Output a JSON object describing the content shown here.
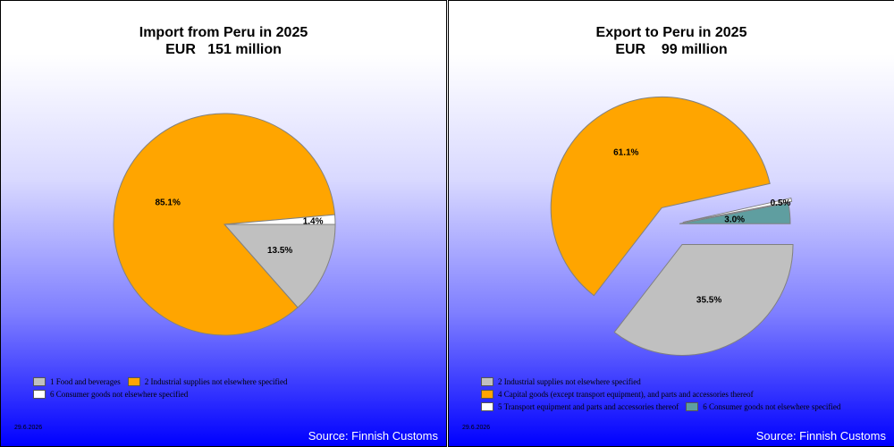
{
  "chart_data": [
    {
      "type": "pie",
      "title": "Import from Peru in 2025",
      "subtitle": "EUR   151 million",
      "slices": [
        {
          "name": "1 Food and beverages",
          "value": 13.5,
          "label": "13.5%",
          "color": "#c0c0c0"
        },
        {
          "name": "2 Industrial supplies not elsewhere specified",
          "value": 85.1,
          "label": "85.1%",
          "color": "#ffa500"
        },
        {
          "name": "6 Consumer goods not elsewhere specified",
          "value": 1.4,
          "label": "1.4%",
          "color": "#ffffff"
        }
      ],
      "legend_rows": [
        [
          0,
          1
        ],
        [
          2
        ]
      ],
      "date": "29.6.2026",
      "source": "Source: Finnish Customs"
    },
    {
      "type": "pie",
      "title": "Export to Peru in 2025",
      "subtitle": "EUR    99 million",
      "slices": [
        {
          "name": "2 Industrial supplies not elsewhere specified",
          "value": 35.5,
          "label": "35.5%",
          "color": "#c0c0c0"
        },
        {
          "name": "4 Capital goods (except transport equipment), and parts and accessories thereof",
          "value": 61.1,
          "label": "61.1%",
          "color": "#ffa500"
        },
        {
          "name": "5  Transport equipment and parts and accessories thereof",
          "value": 0.5,
          "label": "0.5%",
          "color": "#ffffff"
        },
        {
          "name": "6 Consumer goods not elsewhere specified",
          "value": 3.0,
          "label": "3.0%",
          "color": "#5f9ea0"
        }
      ],
      "exploded": true,
      "legend_rows": [
        [
          0
        ],
        [
          1
        ],
        [
          2,
          3
        ]
      ],
      "date": "29.6.2026",
      "source": "Source: Finnish Customs"
    }
  ]
}
